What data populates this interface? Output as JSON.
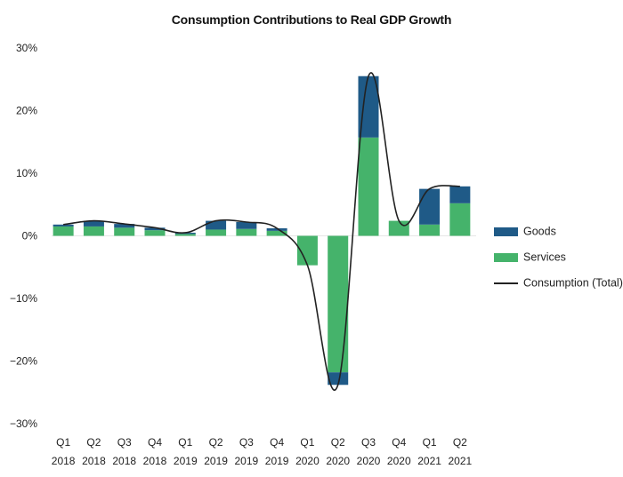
{
  "chart_data": {
    "type": "bar",
    "title": "Consumption Contributions to Real GDP Growth",
    "categories": [
      {
        "quarter": "Q1",
        "year": "2018"
      },
      {
        "quarter": "Q2",
        "year": "2018"
      },
      {
        "quarter": "Q3",
        "year": "2018"
      },
      {
        "quarter": "Q4",
        "year": "2018"
      },
      {
        "quarter": "Q1",
        "year": "2019"
      },
      {
        "quarter": "Q2",
        "year": "2019"
      },
      {
        "quarter": "Q3",
        "year": "2019"
      },
      {
        "quarter": "Q4",
        "year": "2019"
      },
      {
        "quarter": "Q1",
        "year": "2020"
      },
      {
        "quarter": "Q2",
        "year": "2020"
      },
      {
        "quarter": "Q3",
        "year": "2020"
      },
      {
        "quarter": "Q4",
        "year": "2020"
      },
      {
        "quarter": "Q1",
        "year": "2021"
      },
      {
        "quarter": "Q2",
        "year": "2021"
      }
    ],
    "series": [
      {
        "name": "Services",
        "kind": "bar",
        "color": "#45b36b",
        "values": [
          1.5,
          1.5,
          1.3,
          0.9,
          0.3,
          1.0,
          1.1,
          0.8,
          -4.7,
          -21.8,
          15.7,
          2.4,
          1.8,
          5.2
        ]
      },
      {
        "name": "Goods",
        "kind": "bar",
        "color": "#1f5a87",
        "values": [
          0.3,
          0.9,
          0.6,
          0.4,
          0.2,
          1.4,
          1.1,
          0.4,
          0.0,
          -2.0,
          9.8,
          0.0,
          5.7,
          2.7
        ]
      },
      {
        "name": "Consumption (Total)",
        "kind": "line",
        "color": "#222222",
        "values": [
          1.8,
          2.4,
          1.9,
          1.3,
          0.5,
          2.4,
          2.2,
          1.2,
          -4.7,
          -23.8,
          25.5,
          2.4,
          7.5,
          7.9
        ]
      }
    ],
    "y_ticks": [
      "30%",
      "20%",
      "10%",
      "0%",
      "−10%",
      "−20%",
      "−30%"
    ],
    "y_tick_values": [
      30,
      20,
      10,
      0,
      -10,
      -20,
      -30
    ],
    "ylim": [
      -30,
      30
    ],
    "xlabel": "",
    "ylabel": "",
    "legend": [
      "Goods",
      "Services",
      "Consumption (Total)"
    ],
    "legend_position": "right",
    "grid": false
  }
}
